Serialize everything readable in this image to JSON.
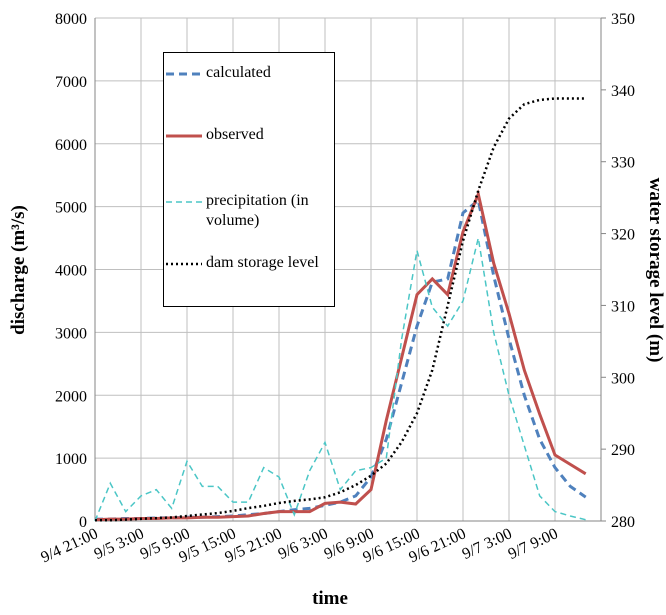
{
  "chart_data": {
    "type": "line",
    "xlabel": "time",
    "ylabel": "discharge (m³/s)",
    "y2label": "water storage level (m)",
    "categories": [
      "9/4 21:00",
      null,
      null,
      "9/5 3:00",
      null,
      null,
      "9/5 9:00",
      null,
      null,
      "9/5 15:00",
      null,
      null,
      "9/5 21:00",
      null,
      null,
      "9/6 3:00",
      null,
      null,
      "9/6 9:00",
      null,
      null,
      "9/6 15:00",
      null,
      null,
      "9/6 21:00",
      null,
      null,
      "9/7 3:00",
      null,
      null,
      "9/7 9:00",
      null,
      null,
      null
    ],
    "series": [
      {
        "name": "calculated",
        "color": "#4f81bd",
        "dash": "8,5",
        "width": 3,
        "values": [
          30,
          30,
          40,
          40,
          50,
          50,
          60,
          60,
          70,
          80,
          100,
          120,
          150,
          180,
          200,
          250,
          300,
          400,
          700,
          1300,
          2200,
          3100,
          3800,
          3850,
          4900,
          5100,
          3900,
          2900,
          2000,
          1300,
          850,
          550,
          380,
          null
        ]
      },
      {
        "name": "observed",
        "color": "#c0504d",
        "dash": "",
        "width": 3,
        "values": [
          20,
          30,
          30,
          40,
          40,
          50,
          50,
          60,
          60,
          70,
          80,
          120,
          150,
          150,
          150,
          280,
          300,
          270,
          500,
          1600,
          2600,
          3600,
          3850,
          3600,
          4600,
          5200,
          4100,
          3300,
          2400,
          1700,
          1050,
          900,
          750,
          null
        ]
      },
      {
        "name": "precipitation (in volume)",
        "color": "#4bc6c6",
        "dash": "6,4",
        "width": 1.5,
        "values": [
          0,
          600,
          150,
          400,
          500,
          200,
          950,
          550,
          550,
          300,
          300,
          850,
          700,
          100,
          800,
          1250,
          500,
          800,
          850,
          1000,
          2900,
          4300,
          3400,
          3100,
          3500,
          4500,
          3000,
          2000,
          1200,
          400,
          150,
          80,
          20,
          null
        ]
      },
      {
        "name": "dam storage level",
        "color": "#000000",
        "dash": "2,3",
        "width": 2.5,
        "axis": "y2",
        "values": [
          280.1,
          280.1,
          280.2,
          280.3,
          280.4,
          280.5,
          280.7,
          280.9,
          281.1,
          281.4,
          281.8,
          282.1,
          282.5,
          282.8,
          283.0,
          283.3,
          284.0,
          285.0,
          286.3,
          288,
          291,
          295,
          301,
          310,
          319,
          326,
          332,
          336,
          338,
          338.6,
          338.8,
          338.8,
          338.8,
          null
        ]
      }
    ],
    "ylim": [
      0,
      8000
    ],
    "yticks": [
      0,
      1000,
      2000,
      3000,
      4000,
      5000,
      6000,
      7000,
      8000
    ],
    "y2lim": [
      280,
      350
    ],
    "y2ticks": [
      280,
      290,
      300,
      310,
      320,
      330,
      340,
      350
    ],
    "grid": true
  }
}
